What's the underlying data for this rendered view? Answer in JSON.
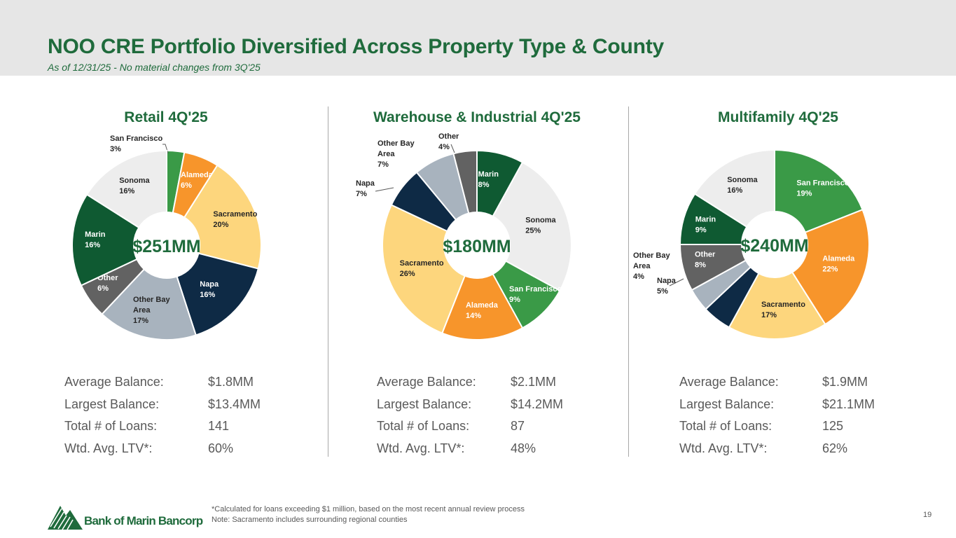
{
  "header": {
    "title": "NOO CRE Portfolio Diversified Across Property Type & County",
    "subtitle": "As of 12/31/25 - No material changes from 3Q'25"
  },
  "stat_labels": {
    "avg": "Average Balance:",
    "largest": "Largest Balance:",
    "count": "Total # of Loans:",
    "ltv": "Wtd. Avg. LTV*:"
  },
  "colors": {
    "San Francisco": "#3a9a47",
    "Alameda": "#f7952b",
    "Sacramento": "#fdd67d",
    "Napa": "#0e2a45",
    "Other Bay Area": "#a8b3be",
    "Other": "#626262",
    "Marin": "#0f5a32",
    "Sonoma": "#ededed",
    "dark_label": "#262626",
    "light_label": "#ffffff",
    "brand": "#1f6b3c"
  },
  "chart_data": [
    {
      "type": "pie",
      "title": "Retail 4Q'25",
      "center_label": "$251MM",
      "slices": [
        {
          "name": "San Francisco",
          "value": 3
        },
        {
          "name": "Alameda",
          "value": 6
        },
        {
          "name": "Sacramento",
          "value": 20
        },
        {
          "name": "Napa",
          "value": 16
        },
        {
          "name": "Other Bay Area",
          "value": 17
        },
        {
          "name": "Other",
          "value": 6
        },
        {
          "name": "Marin",
          "value": 16
        },
        {
          "name": "Sonoma",
          "value": 16
        }
      ]
    },
    {
      "type": "pie",
      "title": "Warehouse & Industrial 4Q'25",
      "center_label": "$180MM",
      "slices": [
        {
          "name": "Marin",
          "value": 8
        },
        {
          "name": "Sonoma",
          "value": 25
        },
        {
          "name": "San Francisco",
          "value": 9
        },
        {
          "name": "Alameda",
          "value": 14
        },
        {
          "name": "Sacramento",
          "value": 26
        },
        {
          "name": "Napa",
          "value": 7
        },
        {
          "name": "Other Bay Area",
          "value": 7
        },
        {
          "name": "Other",
          "value": 4
        }
      ]
    },
    {
      "type": "pie",
      "title": "Multifamily 4Q'25",
      "center_label": "$240MM",
      "slices": [
        {
          "name": "San Francisco",
          "value": 19
        },
        {
          "name": "Alameda",
          "value": 22
        },
        {
          "name": "Sacramento",
          "value": 17
        },
        {
          "name": "Napa",
          "value": 5
        },
        {
          "name": "Other Bay Area",
          "value": 4
        },
        {
          "name": "Other",
          "value": 8
        },
        {
          "name": "Marin",
          "value": 9
        },
        {
          "name": "Sonoma",
          "value": 16
        }
      ]
    }
  ],
  "panels": [
    {
      "stats": {
        "avg": "$1.8MM",
        "largest": "$13.4MM",
        "count": "141",
        "ltv": "60%"
      }
    },
    {
      "stats": {
        "avg": "$2.1MM",
        "largest": "$14.2MM",
        "count": "87",
        "ltv": "48%"
      }
    },
    {
      "stats": {
        "avg": "$1.9MM",
        "largest": "$21.1MM",
        "count": "125",
        "ltv": "62%"
      }
    }
  ],
  "footer": {
    "logo_text": "Bank of Marin Bancorp",
    "note1": "*Calculated for loans exceeding $1 million, based on the most recent annual review process",
    "note2": "Note: Sacramento includes surrounding regional counties",
    "page_number": "19"
  }
}
